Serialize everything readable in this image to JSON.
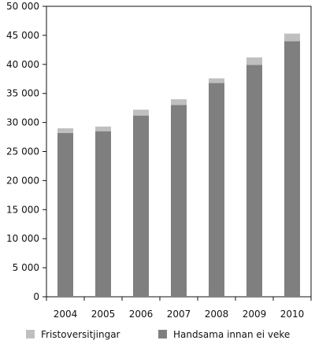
{
  "chart_data": {
    "type": "bar",
    "stacked": true,
    "categories": [
      "2004",
      "2005",
      "2006",
      "2007",
      "2008",
      "2009",
      "2010"
    ],
    "series": [
      {
        "name": "Handsama innan ei veke",
        "color": "#7f7f7f",
        "values": [
          28200,
          28500,
          31200,
          33000,
          36800,
          39900,
          44000
        ]
      },
      {
        "name": "Fristoversitjingar",
        "color": "#bfbfbf",
        "values": [
          800,
          800,
          1000,
          1000,
          800,
          1300,
          1300
        ]
      }
    ],
    "ylim": [
      0,
      50000
    ],
    "yticks": [
      0,
      5000,
      10000,
      15000,
      20000,
      25000,
      30000,
      35000,
      40000,
      45000,
      50000
    ],
    "ytick_labels": [
      "0",
      "5 000",
      "10 000",
      "15 000",
      "20 000",
      "25 000",
      "30 000",
      "35 000",
      "40 000",
      "45 000",
      "50 000"
    ],
    "grid": false,
    "legend_position": "bottom",
    "legend": [
      "Fristoversitjingar",
      "Handsama innan ei veke"
    ]
  }
}
